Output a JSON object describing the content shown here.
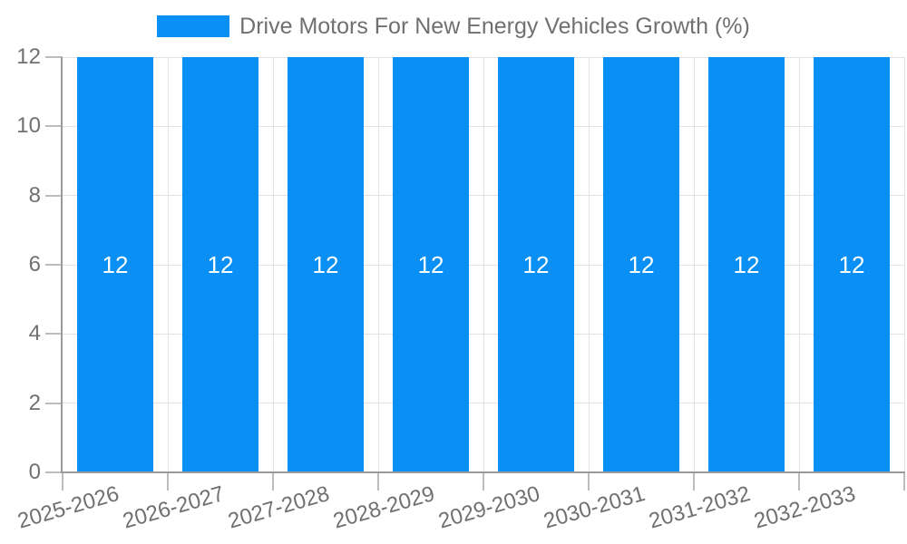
{
  "chart_data": {
    "type": "bar",
    "title": "Drive Motors For New Energy Vehicles Growth (%)",
    "legend_position": "top",
    "categories": [
      "2025-2026",
      "2026-2027",
      "2027-2028",
      "2028-2029",
      "2029-2030",
      "2030-2031",
      "2031-2032",
      "2032-2033"
    ],
    "series": [
      {
        "name": "Drive Motors For New Energy Vehicles Growth (%)",
        "values": [
          12,
          12,
          12,
          12,
          12,
          12,
          12,
          12
        ]
      }
    ],
    "bar_value_labels": [
      "12",
      "12",
      "12",
      "12",
      "12",
      "12",
      "12",
      "12"
    ],
    "xlabel": "",
    "ylabel": "",
    "ylim": [
      0,
      12
    ],
    "yticks": [
      0,
      2,
      4,
      6,
      8,
      10,
      12
    ],
    "ytick_labels": [
      "0",
      "2",
      "4",
      "6",
      "8",
      "10",
      "12"
    ],
    "grid": true,
    "x_label_rotation_deg": -16,
    "colors": {
      "bar": "#0a90f5",
      "bar_label": "#ffffff",
      "gridline": "#e2e2e2",
      "axis_line": "#9a9a9a",
      "tick_mark": "#bcbcbc",
      "text": "#707070",
      "background": "#ffffff"
    }
  }
}
